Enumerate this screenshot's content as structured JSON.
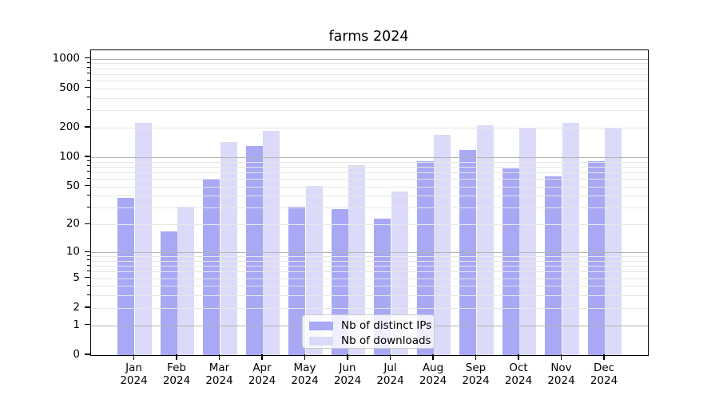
{
  "title": "farms 2024",
  "legend": {
    "items": [
      {
        "label": "Nb of distinct IPs",
        "color": "#a8a8f5"
      },
      {
        "label": "Nb of downloads",
        "color": "#dbdbf9"
      }
    ]
  },
  "chart_data": {
    "type": "bar",
    "title": "farms 2024",
    "categories": [
      "Jan 2024",
      "Feb 2024",
      "Mar 2024",
      "Apr 2024",
      "May 2024",
      "Jun 2024",
      "Jul 2024",
      "Aug 2024",
      "Sep 2024",
      "Oct 2024",
      "Nov 2024",
      "Dec 2024"
    ],
    "series": [
      {
        "name": "Nb of distinct IPs",
        "color": "#a8a8f5",
        "values": [
          38,
          17,
          60,
          130,
          31,
          29,
          23,
          91,
          118,
          77,
          64,
          91
        ]
      },
      {
        "name": "Nb of downloads",
        "color": "#dbdbf9",
        "values": [
          225,
          31,
          143,
          185,
          51,
          83,
          44,
          170,
          212,
          199,
          222,
          201
        ]
      }
    ],
    "xlabel": "",
    "ylabel": "",
    "yscale": "log1p",
    "ylim": [
      0,
      1220
    ],
    "yticks": [
      1000,
      500,
      200,
      100,
      50,
      20,
      10,
      5,
      2,
      1,
      0
    ],
    "major_grid_values": [
      1,
      10,
      100,
      1000
    ],
    "minor_grid_values": [
      2,
      3,
      4,
      5,
      6,
      7,
      8,
      9,
      20,
      30,
      40,
      50,
      60,
      70,
      80,
      90,
      200,
      300,
      400,
      500,
      600,
      700,
      800,
      900
    ],
    "grid": true,
    "grid_major_color": "#b3b3b3",
    "grid_minor_color": "#e7e7e7",
    "legend_position": "lower center"
  }
}
